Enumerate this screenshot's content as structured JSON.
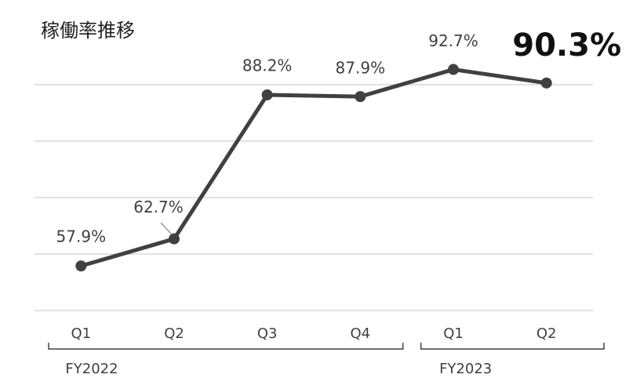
{
  "chart_data": {
    "type": "line",
    "title": "稼働率推移",
    "categories": [
      "Q1",
      "Q2",
      "Q3",
      "Q4",
      "Q1",
      "Q2"
    ],
    "groups": [
      {
        "name": "FY2022",
        "size": 4
      },
      {
        "name": "FY2023",
        "size": 2
      }
    ],
    "values": [
      57.9,
      62.7,
      88.2,
      87.9,
      92.7,
      90.3
    ],
    "value_labels": [
      "57.9%",
      "62.7%",
      "88.2%",
      "87.9%",
      "92.7%",
      "90.3%"
    ],
    "color": "#404040",
    "ylim": [
      50,
      95
    ],
    "yticks": [
      50,
      60,
      70,
      80,
      90
    ],
    "grid": true
  }
}
